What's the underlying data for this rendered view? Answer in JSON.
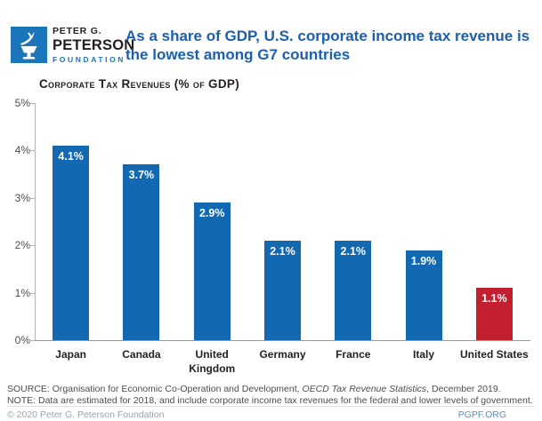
{
  "brand": {
    "name_line1": "PETER G.",
    "name_line2": "PETERSON",
    "name_line3": "FOUNDATION",
    "logo_color": "#1B75BB"
  },
  "header": {
    "title_line1": "As a share of GDP, U.S. corporate income tax revenue is",
    "title_line2": "the lowest among G7 countries",
    "title_color": "#1C5FAC"
  },
  "chart_data": {
    "type": "bar",
    "title": "Corporate Tax Revenues (% of GDP)",
    "categories": [
      "Japan",
      "Canada",
      "United\nKingdom",
      "Germany",
      "France",
      "Italy",
      "United States"
    ],
    "values": [
      4.1,
      3.7,
      2.9,
      2.1,
      2.1,
      1.9,
      1.1
    ],
    "value_labels": [
      "4.1%",
      "3.7%",
      "2.9%",
      "2.1%",
      "2.1%",
      "1.9%",
      "1.1%"
    ],
    "bar_colors": [
      "#1268B1",
      "#1268B1",
      "#1268B1",
      "#1268B1",
      "#1268B1",
      "#1268B1",
      "#C3202F"
    ],
    "ylabel": "",
    "xlabel": "",
    "ylim": [
      0,
      5
    ],
    "ytick_labels": [
      "0%",
      "1%",
      "2%",
      "3%",
      "4%",
      "5%"
    ],
    "grid": false,
    "legend": false,
    "value_label_position": "inside-top",
    "highlight_category": "United States"
  },
  "footer": {
    "source_prefix": "SOURCE: Organisation for Economic Co-Operation and Development, ",
    "source_italic": "OECD Tax Revenue Statistics",
    "source_suffix": ", December 2019.",
    "note": "NOTE: Data are estimated for 2018, and include corporate income tax revenues for the federal and lower levels of government.",
    "copyright": "© 2020 Peter G. Peterson Foundation",
    "site": "PGPF.ORG"
  }
}
